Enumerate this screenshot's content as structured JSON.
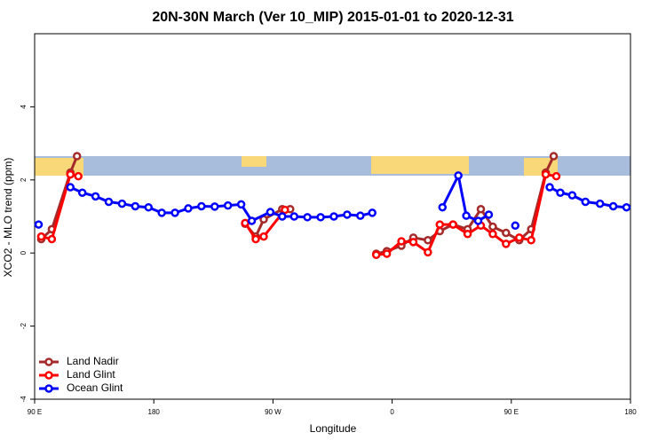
{
  "chart_data": {
    "type": "line",
    "title": "20N-30N March (Ver 10_MIP)   2015-01-01 to 2020-12-31",
    "x_label": "Longitude",
    "y_label": "XCO2 - MLO trend (ppm)",
    "xlim": [
      90,
      540
    ],
    "ylim": [
      -4,
      6
    ],
    "xticks": [
      {
        "value": 90,
        "label": "90 E"
      },
      {
        "value": 180,
        "label": "180"
      },
      {
        "value": 270,
        "label": "90 W"
      },
      {
        "value": 360,
        "label": "0"
      },
      {
        "value": 450,
        "label": "90 E"
      },
      {
        "value": 540,
        "label": "180"
      }
    ],
    "yticks": [
      -4,
      -2,
      0,
      2,
      4
    ],
    "legend": "bottom-left",
    "series": [
      {
        "name": "Land Nadir",
        "color": "#a52a2a",
        "x": [
          95,
          103,
          117,
          122,
          200,
          249,
          257,
          263,
          277,
          283,
          320,
          348,
          356,
          367,
          376,
          387,
          396,
          406,
          417,
          427,
          436,
          446,
          456,
          465,
          476,
          482
        ],
        "values": [
          0.38,
          0.65,
          2.2,
          2.65,
          null,
          0.8,
          0.45,
          0.92,
          1.2,
          1.2,
          null,
          -0.02,
          0.05,
          0.2,
          0.42,
          0.35,
          0.6,
          0.78,
          0.65,
          1.2,
          0.72,
          0.55,
          0.35,
          0.65,
          2.2,
          2.65
        ]
      },
      {
        "name": "Land Glint",
        "color": "#ff0000",
        "x": [
          95,
          103,
          117,
          123,
          200,
          249,
          257,
          263,
          279,
          320,
          348,
          356,
          367,
          376,
          387,
          396,
          406,
          417,
          427,
          436,
          446,
          456,
          465,
          476,
          484
        ],
        "values": [
          0.45,
          0.38,
          2.15,
          2.1,
          null,
          0.82,
          0.38,
          0.45,
          1.18,
          null,
          -0.05,
          -0.02,
          0.32,
          0.3,
          0.02,
          0.78,
          0.78,
          0.52,
          0.75,
          0.52,
          0.25,
          0.42,
          0.35,
          2.15,
          2.1
        ]
      },
      {
        "name": "Ocean Glint",
        "color": "#0000ff",
        "x": [
          93,
          105,
          117,
          126,
          136,
          146,
          156,
          166,
          176,
          186,
          196,
          206,
          216,
          226,
          236,
          246,
          254,
          268,
          277,
          286,
          296,
          306,
          316,
          326,
          336,
          345,
          370,
          398,
          410,
          416,
          425,
          433,
          443,
          453,
          465,
          479,
          487,
          496,
          506,
          517,
          527,
          537
        ],
        "values": [
          0.78,
          null,
          1.8,
          1.65,
          1.55,
          1.4,
          1.35,
          1.28,
          1.25,
          1.1,
          1.1,
          1.22,
          1.28,
          1.27,
          1.3,
          1.33,
          0.88,
          1.12,
          1.0,
          1.0,
          0.98,
          0.98,
          1.0,
          1.05,
          1.02,
          1.1,
          null,
          1.25,
          2.12,
          1.02,
          0.88,
          1.05,
          null,
          0.75,
          null,
          1.8,
          1.65,
          1.58,
          1.4,
          1.35,
          1.28,
          1.25
        ]
      }
    ]
  }
}
